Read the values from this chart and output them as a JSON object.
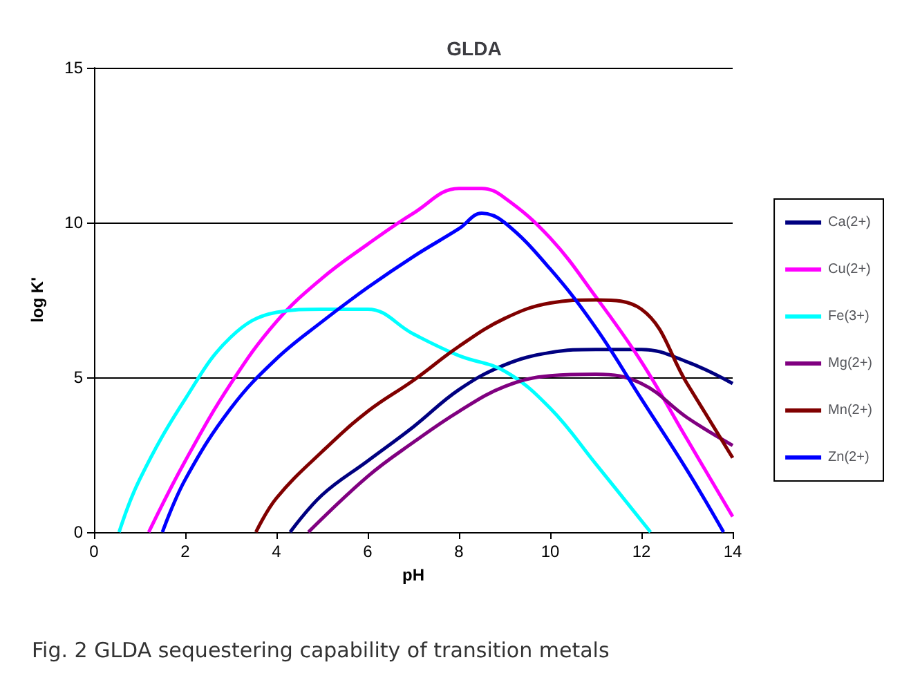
{
  "chart_data": {
    "type": "line",
    "title": "GLDA",
    "xlabel": "pH",
    "ylabel": "log K'",
    "xlim": [
      0,
      14
    ],
    "xticks": [
      0,
      2,
      4,
      6,
      8,
      10,
      12,
      14
    ],
    "ylim": [
      0,
      15
    ],
    "yticks": [
      0,
      5,
      10,
      15
    ],
    "grid": "y",
    "legend": "right",
    "marker": "none",
    "line_style": "solid",
    "annotations": [
      "Fig. 2 GLDA sequestering capability of transition metals"
    ],
    "series": [
      {
        "name": "Ca(2+)",
        "color": "#000080",
        "x": [
          4.3,
          5,
          6,
          7,
          8,
          9,
          10,
          11,
          12,
          13,
          14
        ],
        "values": [
          0,
          1.2,
          2.3,
          3.4,
          4.6,
          5.4,
          5.8,
          5.9,
          5.9,
          5.5,
          4.8
        ]
      },
      {
        "name": "Cu(2+)",
        "color": "#ff00ff",
        "x": [
          1.2,
          2,
          3,
          4,
          5,
          6,
          7,
          8,
          8.5,
          9,
          10,
          11,
          12,
          13,
          14
        ],
        "values": [
          0,
          2.3,
          4.8,
          6.8,
          8.2,
          9.3,
          10.3,
          11.1,
          11.1,
          10.8,
          9.5,
          7.6,
          5.5,
          3,
          0.5
        ]
      },
      {
        "name": "Fe(3+)",
        "color": "#00ffff",
        "x": [
          0.55,
          1,
          2,
          3,
          4,
          5,
          6,
          7,
          8,
          9,
          10,
          11,
          12.2
        ],
        "values": [
          0,
          1.7,
          4.3,
          6.3,
          7.1,
          7.2,
          7.2,
          6.4,
          5.7,
          5.2,
          4,
          2.2,
          0
        ]
      },
      {
        "name": "Mg(2+)",
        "color": "#800080",
        "x": [
          4.7,
          6,
          7,
          8,
          9,
          10,
          11,
          12,
          13,
          14
        ],
        "values": [
          0,
          1.8,
          2.9,
          3.9,
          4.7,
          5.05,
          5.1,
          4.8,
          3.7,
          2.8
        ]
      },
      {
        "name": "Mn(2+)",
        "color": "#800000",
        "x": [
          3.55,
          4,
          5,
          6,
          7,
          8,
          9,
          10,
          11,
          12,
          13,
          14
        ],
        "values": [
          0,
          1.1,
          2.6,
          3.9,
          4.9,
          6,
          6.9,
          7.4,
          7.5,
          7.2,
          4.8,
          2.4
        ]
      },
      {
        "name": "Zn(2+)",
        "color": "#0000ff",
        "x": [
          1.5,
          2,
          3,
          4,
          5,
          6,
          7,
          8,
          8.5,
          9,
          10,
          11,
          12,
          13,
          13.8
        ],
        "values": [
          0,
          1.7,
          4,
          5.6,
          6.8,
          7.9,
          8.9,
          9.8,
          10.3,
          10,
          8.5,
          6.6,
          4.3,
          2,
          0
        ]
      }
    ]
  }
}
